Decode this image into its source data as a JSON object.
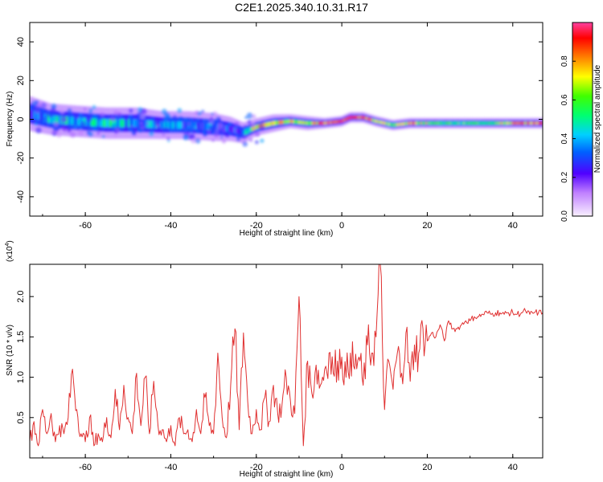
{
  "title": "C2E1.2025.340.10.31.R17",
  "colors": {
    "snr_line": "#e03030",
    "spec_ridge": "#d01818",
    "axis": "#000000"
  },
  "chart_data": [
    {
      "type": "heatmap",
      "name": "spectrogram",
      "xlabel": "Height of straight line (km)",
      "ylabel": "Frequency (Hz)",
      "xlim": [
        -73,
        47
      ],
      "ylim": [
        -50,
        50
      ],
      "xticks": [
        -60,
        -40,
        -20,
        0,
        20,
        40
      ],
      "xtick_labels": [
        "-60",
        "-40",
        "-20",
        "0",
        "20",
        "40"
      ],
      "yticks": [
        -40,
        -20,
        0,
        20,
        40
      ],
      "ytick_labels": [
        "-40",
        "-20",
        "0",
        "20",
        "40"
      ],
      "ridge": {
        "x": [
          -73,
          -68,
          -62,
          -55,
          -48,
          -42,
          -36,
          -30,
          -26,
          -23,
          -20,
          -16,
          -12,
          -8,
          -4,
          0,
          2,
          5,
          8,
          12,
          16,
          20,
          25,
          30,
          35,
          40,
          46
        ],
        "y": [
          3,
          0,
          -1,
          -2,
          -2,
          -3,
          -3,
          -4,
          -5,
          -7,
          -4,
          -2,
          -1,
          -2,
          -2,
          -1,
          1,
          1,
          -1,
          -3,
          -2,
          -2,
          -2,
          -2,
          -2,
          -2,
          -2
        ],
        "width": [
          10,
          9,
          9,
          9,
          9,
          8,
          8,
          8,
          7,
          6,
          5,
          5,
          4,
          4,
          3,
          3,
          3,
          3,
          3,
          3,
          3,
          3,
          3,
          3,
          3,
          3,
          3
        ],
        "intensity": [
          0.25,
          0.45,
          0.4,
          0.45,
          0.4,
          0.35,
          0.3,
          0.35,
          0.3,
          0.3,
          0.75,
          0.7,
          0.72,
          0.7,
          0.85,
          0.9,
          0.9,
          0.85,
          0.75,
          0.6,
          0.8,
          0.65,
          0.55,
          0.55,
          0.6,
          0.75,
          0.85
        ]
      }
    },
    {
      "type": "colorbar",
      "name": "amplitude-colorbar",
      "label": "Normalized spectral amplitude",
      "range": [
        0,
        1
      ],
      "ticks": [
        0.0,
        0.2,
        0.4,
        0.6,
        0.8
      ],
      "tick_labels": [
        "0.0",
        "0.2",
        "0.4",
        "0.6",
        "0.8"
      ]
    },
    {
      "type": "line",
      "name": "snr",
      "xlabel": "Height of straight line (km)",
      "ylabel": "SNR (10 * v/v)",
      "multiplier_label": "(x10",
      "multiplier_exp": "4",
      "multiplier_close": ")",
      "xlim": [
        -73,
        47
      ],
      "ylim": [
        0,
        2.4
      ],
      "xticks": [
        -60,
        -40,
        -20,
        0,
        20,
        40
      ],
      "xtick_labels": [
        "-60",
        "-40",
        "-20",
        "0",
        "20",
        "40"
      ],
      "yticks": [
        0.5,
        1.0,
        1.5,
        2.0
      ],
      "ytick_labels": [
        "0.5",
        "1.0",
        "1.5",
        "2.0"
      ],
      "series": [
        {
          "name": "SNR",
          "x": [
            -73,
            -72,
            -71,
            -70,
            -69,
            -68,
            -67,
            -66,
            -65,
            -64,
            -63,
            -62,
            -61,
            -60,
            -59,
            -58,
            -57,
            -56,
            -55,
            -54,
            -53,
            -52,
            -51,
            -50,
            -49,
            -48,
            -47,
            -46,
            -45,
            -44,
            -43,
            -42,
            -41,
            -40,
            -39,
            -38,
            -37,
            -36,
            -35,
            -34,
            -33,
            -32,
            -31,
            -30,
            -29,
            -28,
            -27,
            -26,
            -25,
            -24,
            -23,
            -22,
            -21,
            -20,
            -19,
            -18,
            -17,
            -16,
            -15,
            -14,
            -13,
            -12,
            -11,
            -10,
            -9,
            -8,
            -7,
            -6,
            -5,
            -4,
            -3,
            -2,
            -1,
            0,
            1,
            2,
            3,
            4,
            5,
            6,
            7,
            8,
            9,
            10,
            11,
            12,
            13,
            14,
            15,
            16,
            17,
            18,
            19,
            20,
            21,
            22,
            23,
            24,
            25,
            26,
            27,
            28,
            29,
            30,
            31,
            32,
            33,
            34,
            35,
            36,
            37,
            38,
            39,
            40,
            41,
            42,
            43,
            44,
            45,
            46,
            47
          ],
          "values": [
            0.2,
            0.45,
            0.15,
            0.6,
            0.3,
            0.55,
            0.2,
            0.4,
            0.3,
            0.5,
            1.1,
            0.6,
            0.3,
            0.2,
            0.5,
            0.15,
            0.3,
            0.2,
            0.5,
            0.25,
            0.85,
            0.35,
            0.9,
            0.5,
            0.3,
            1.05,
            0.4,
            1.0,
            0.3,
            0.95,
            0.4,
            0.35,
            0.2,
            0.4,
            0.15,
            0.5,
            0.3,
            0.35,
            0.2,
            0.6,
            0.3,
            0.75,
            0.4,
            0.3,
            1.3,
            0.5,
            0.25,
            0.9,
            1.6,
            0.35,
            1.55,
            0.7,
            0.3,
            0.6,
            0.35,
            0.75,
            0.45,
            0.9,
            0.55,
            0.65,
            1.0,
            0.7,
            0.55,
            2.0,
            0.15,
            1.2,
            0.8,
            1.15,
            0.9,
            1.1,
            1.3,
            1.05,
            1.2,
            1.25,
            1.0,
            1.3,
            1.1,
            1.25,
            0.9,
            1.4,
            1.3,
            1.5,
            2.4,
            0.6,
            1.2,
            0.85,
            1.3,
            1.05,
            1.55,
            0.95,
            1.4,
            1.3,
            1.6,
            1.45,
            1.55,
            1.5,
            1.65,
            1.45,
            1.7,
            1.6,
            1.6,
            1.65,
            1.7,
            1.7,
            1.75,
            1.75,
            1.78,
            1.8,
            1.78,
            1.8,
            1.8,
            1.78,
            1.8,
            1.8,
            1.78,
            1.8,
            1.82,
            1.78,
            1.8,
            1.8,
            1.8
          ]
        }
      ]
    }
  ]
}
